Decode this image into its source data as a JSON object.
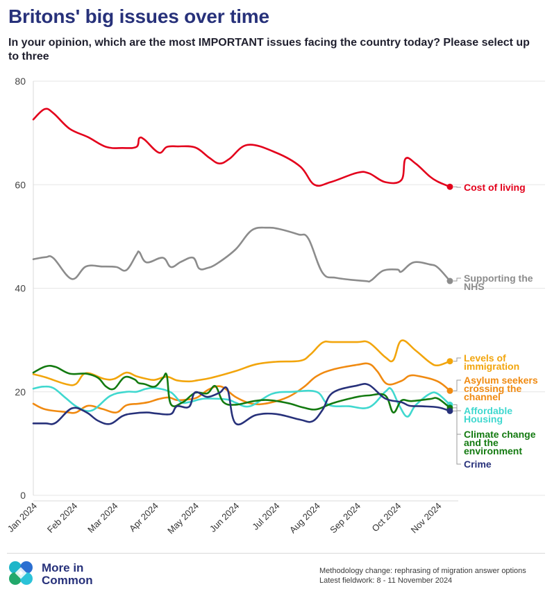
{
  "header": {
    "title": "Britons' big issues over time",
    "subtitle": "In your opinion, which are the most IMPORTANT issues facing the country today? Please select up to three"
  },
  "chart_data": {
    "type": "line",
    "title": "Britons' big issues over time",
    "xlabel": "",
    "ylabel": "",
    "ylim": [
      0,
      80
    ],
    "yticks": [
      0,
      20,
      40,
      60,
      80
    ],
    "xlim": [
      0,
      10.3
    ],
    "x_tick_labels": [
      "Jan 2024",
      "Feb 2024",
      "Mar 2024",
      "Apr 2024",
      "May 2024",
      "Jun 2024",
      "Jul 2024",
      "Aug 2024",
      "Sep 2024",
      "Oct 2024",
      "Nov 2024"
    ],
    "x_tick_positions": [
      0,
      1,
      2,
      3,
      4,
      5,
      6,
      7,
      8,
      9,
      10
    ],
    "grid": "horizontal",
    "series": [
      {
        "name": "Cost of living",
        "label_lines": [
          "Cost of living"
        ],
        "color": "#e3001b",
        "x": [
          0,
          0.28,
          0.5,
          0.9,
          1.35,
          1.8,
          2.2,
          2.55,
          2.62,
          2.75,
          3.1,
          3.3,
          3.55,
          4.0,
          4.35,
          4.6,
          4.85,
          5.3,
          6.0,
          6.6,
          6.95,
          7.35,
          8.0,
          8.3,
          8.7,
          9.1,
          9.2,
          9.45,
          9.8,
          10.0,
          10.3
        ],
        "y": [
          72.6,
          74.6,
          73.8,
          70.8,
          69.2,
          67.3,
          67.1,
          67.3,
          69.0,
          68.7,
          66.2,
          67.3,
          67.4,
          67.2,
          65.2,
          64.1,
          65.0,
          67.7,
          66.2,
          63.5,
          60.0,
          60.5,
          62.3,
          62.2,
          60.5,
          60.9,
          65.0,
          64.1,
          61.6,
          60.6,
          59.6
        ]
      },
      {
        "name": "Supporting the NHS",
        "label_lines": [
          "Supporting the",
          "NHS"
        ],
        "color": "#8c8c8c",
        "x": [
          0,
          0.3,
          0.5,
          0.95,
          1.3,
          1.7,
          2.05,
          2.3,
          2.55,
          2.62,
          2.8,
          3.2,
          3.4,
          3.65,
          3.95,
          4.1,
          4.3,
          4.55,
          5.0,
          5.4,
          5.8,
          6.1,
          6.55,
          6.8,
          7.15,
          7.5,
          8.2,
          8.35,
          8.65,
          9.0,
          9.1,
          9.4,
          9.8,
          10.0,
          10.3
        ],
        "y": [
          45.6,
          46.0,
          45.8,
          41.8,
          44.2,
          44.2,
          44.1,
          43.5,
          46.5,
          47.0,
          45.0,
          45.9,
          44.1,
          45.1,
          45.9,
          43.8,
          43.9,
          44.8,
          47.5,
          51.2,
          51.7,
          51.4,
          50.4,
          49.6,
          43.0,
          42.0,
          41.4,
          41.5,
          43.4,
          43.6,
          43.2,
          45.0,
          44.6,
          44.0,
          41.4
        ]
      },
      {
        "name": "Levels of immigration",
        "label_lines": [
          "Levels of",
          "immigration"
        ],
        "color": "#f2a50c",
        "x": [
          0,
          0.3,
          0.8,
          1.05,
          1.3,
          1.75,
          2.0,
          2.3,
          2.55,
          2.8,
          3.0,
          3.3,
          3.55,
          3.85,
          4.05,
          4.4,
          5.0,
          5.5,
          6.0,
          6.6,
          6.85,
          7.15,
          7.4,
          8.0,
          8.3,
          8.7,
          8.9,
          9.1,
          9.45,
          9.8,
          10.0,
          10.3
        ],
        "y": [
          23.4,
          22.8,
          21.5,
          21.5,
          23.6,
          22.5,
          22.5,
          23.7,
          23.0,
          22.5,
          22.3,
          22.9,
          22.2,
          22.0,
          22.2,
          22.7,
          24.0,
          25.3,
          25.8,
          26.0,
          27.2,
          29.5,
          29.6,
          29.6,
          29.5,
          26.7,
          26.1,
          29.9,
          28.0,
          25.7,
          25.1,
          25.9
        ]
      },
      {
        "name": "Asylum seekers crossing the channel",
        "label_lines": [
          "Asylum seekers",
          "crossing the",
          "channel"
        ],
        "color": "#f08a11",
        "x": [
          0,
          0.3,
          0.8,
          1.05,
          1.35,
          1.7,
          2.05,
          2.3,
          2.6,
          2.85,
          3.1,
          3.35,
          3.55,
          3.8,
          4.05,
          4.35,
          4.65,
          5.0,
          5.4,
          5.8,
          6.3,
          6.7,
          7.0,
          7.4,
          8.0,
          8.3,
          8.5,
          8.75,
          9.1,
          9.3,
          9.55,
          10.0,
          10.3
        ],
        "y": [
          17.7,
          16.6,
          16.1,
          16.0,
          17.3,
          16.7,
          16.0,
          17.4,
          17.7,
          18.0,
          18.6,
          18.9,
          18.4,
          18.5,
          18.9,
          20.5,
          21.0,
          19.0,
          17.7,
          17.8,
          19.0,
          21.0,
          23.0,
          24.3,
          25.2,
          25.4,
          24.0,
          21.5,
          22.1,
          23.1,
          23.0,
          22.0,
          20.2
        ]
      },
      {
        "name": "Affordable Housing",
        "label_lines": [
          "Affordable",
          "Housing"
        ],
        "color": "#40d8cf",
        "x": [
          0,
          0.25,
          0.5,
          0.8,
          1.1,
          1.45,
          1.9,
          2.3,
          2.55,
          2.8,
          3.05,
          3.4,
          3.65,
          3.85,
          4.1,
          4.3,
          4.8,
          5.0,
          5.35,
          5.9,
          6.4,
          7.0,
          7.3,
          7.8,
          8.3,
          8.7,
          8.85,
          9.05,
          9.25,
          9.45,
          9.8,
          10.0,
          10.3
        ],
        "y": [
          20.6,
          21.0,
          20.7,
          18.8,
          17.0,
          16.4,
          19.2,
          20.0,
          20.0,
          20.6,
          20.7,
          19.9,
          18.0,
          18.0,
          18.5,
          18.7,
          18.5,
          17.9,
          17.2,
          19.6,
          20.0,
          20.0,
          17.5,
          17.2,
          17.0,
          20.0,
          20.5,
          17.3,
          15.2,
          17.4,
          19.6,
          19.6,
          17.5
        ]
      },
      {
        "name": "Climate change and the environment",
        "label_lines": [
          "Climate change",
          "and the",
          "environment"
        ],
        "color": "#137a10",
        "x": [
          0,
          0.3,
          0.55,
          0.9,
          1.3,
          1.6,
          1.8,
          2.0,
          2.25,
          2.5,
          2.6,
          2.75,
          3.0,
          3.2,
          3.3,
          3.4,
          3.7,
          4.0,
          4.3,
          4.5,
          4.7,
          5.0,
          5.45,
          5.8,
          6.3,
          6.65,
          7.0,
          7.4,
          8.0,
          8.3,
          8.7,
          8.9,
          9.1,
          9.35,
          9.8,
          10.0,
          10.3
        ],
        "y": [
          23.7,
          24.9,
          24.8,
          23.5,
          23.5,
          22.7,
          21.0,
          20.6,
          22.8,
          22.4,
          21.7,
          21.5,
          21.0,
          22.6,
          23.2,
          17.6,
          18.0,
          19.8,
          19.7,
          21.1,
          18.0,
          17.5,
          18.2,
          18.4,
          17.8,
          17.0,
          16.6,
          17.8,
          19.0,
          19.3,
          19.3,
          16.0,
          18.3,
          18.2,
          18.6,
          18.7,
          16.9
        ]
      },
      {
        "name": "Crime",
        "label_lines": [
          "Crime"
        ],
        "color": "#27317a",
        "x": [
          0,
          0.3,
          0.55,
          0.95,
          1.3,
          1.6,
          1.9,
          2.2,
          2.45,
          2.8,
          3.05,
          3.4,
          3.55,
          3.85,
          4.0,
          4.3,
          4.6,
          4.8,
          5.0,
          5.5,
          6.0,
          6.6,
          6.9,
          7.15,
          7.4,
          8.0,
          8.3,
          8.7,
          9.1,
          9.3,
          9.6,
          10.0,
          10.3
        ],
        "y": [
          13.9,
          13.9,
          14.0,
          16.8,
          16.1,
          14.4,
          13.8,
          15.3,
          15.8,
          16.0,
          15.8,
          15.7,
          17.2,
          17.1,
          19.9,
          19.0,
          19.8,
          20.5,
          13.9,
          15.5,
          15.7,
          14.6,
          14.3,
          16.5,
          19.8,
          21.2,
          21.3,
          18.7,
          18.0,
          17.3,
          17.2,
          17.0,
          16.3
        ]
      }
    ]
  },
  "footer": {
    "brand_line1": "More in",
    "brand_line2": "Common",
    "note_line1": "Methodology change: rephrasing of migration answer options",
    "note_line2": "Latest fieldwork: 8 - 11 November 2024"
  }
}
